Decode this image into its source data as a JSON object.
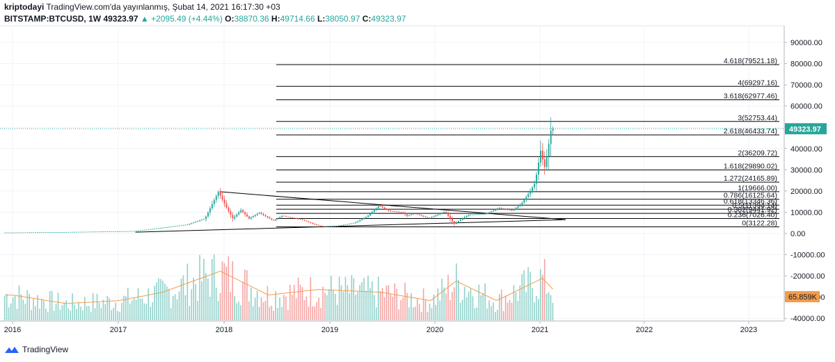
{
  "header": {
    "author": "kriptodayi",
    "published": "TradingView.com'da yayınlanmış, Şubat 14, 2021 16:17:30 +03",
    "symbol": "BITSTAMP:BTCUSD, 1W",
    "last": "49323.97",
    "change": "▲ +2095.49 (+4.44%)",
    "o_label": "O:",
    "o": "38870.36",
    "h_label": "H:",
    "h": "49714.66",
    "l_label": "L:",
    "l": "38050.97",
    "c_label": "C:",
    "c": "49323.97"
  },
  "footer": {
    "brand": "TradingView"
  },
  "colors": {
    "up": "#26a69a",
    "down": "#ef5350",
    "price_line": "#26a69a",
    "volume_up": "#8fd1c9",
    "volume_down": "#f5a3a1",
    "ma": "#f39c4b",
    "fib": "#000000"
  },
  "chart_data": {
    "type": "candlestick",
    "x_ticks": [
      "2016",
      "2017",
      "2018",
      "2019",
      "2020",
      "2021",
      "2022",
      "2023"
    ],
    "y_ticks": [
      "90000.00",
      "80000.00",
      "70000.00",
      "60000.00",
      "50000.00",
      "40000.00",
      "30000.00",
      "20000.00",
      "10000.00",
      "0.00",
      "-10000.00",
      "-20000.00",
      "-30000.00",
      "-40000.00"
    ],
    "ylim": [
      -40000,
      95000
    ],
    "last_price_label": "49323.97",
    "volume_label": "65.859K",
    "fib_levels": [
      {
        "ratio": 4.618,
        "value": 79521.18,
        "label": "4.618(79521.18)"
      },
      {
        "ratio": 4,
        "value": 69297.16,
        "label": "4(69297.16)"
      },
      {
        "ratio": 3.618,
        "value": 62977.46,
        "label": "3.618(62977.46)"
      },
      {
        "ratio": 3,
        "value": 52753.44,
        "label": "3(52753.44)"
      },
      {
        "ratio": 2.618,
        "value": 46433.74,
        "label": "2.618(46433.74)"
      },
      {
        "ratio": 2,
        "value": 36209.72,
        "label": "2(36209.72)"
      },
      {
        "ratio": 1.618,
        "value": 29890.02,
        "label": "1.618(29890.02)"
      },
      {
        "ratio": 1.272,
        "value": 24165.89,
        "label": "1.272(24165.89)"
      },
      {
        "ratio": 1,
        "value": 19666.0,
        "label": "1(19666.00)"
      },
      {
        "ratio": 0.786,
        "value": 16125.64,
        "label": "0.786(16125.64)"
      },
      {
        "ratio": 0.618,
        "value": 13346.36,
        "label": "0.618(13346.36)"
      },
      {
        "ratio": 0.5,
        "value": 11394.14,
        "label": "0.5(11394.14)"
      },
      {
        "ratio": 0.382,
        "value": 9441.92,
        "label": "0.382(9441.92)"
      },
      {
        "ratio": 0.236,
        "value": 7026.4,
        "label": "0.236(7026.40)"
      },
      {
        "ratio": 0,
        "value": 3122.28,
        "label": "0(3122.28)"
      }
    ],
    "series": [
      {
        "name": "price",
        "points": [
          [
            "2016-01-01",
            430
          ],
          [
            "2016-07-01",
            650
          ],
          [
            "2017-01-01",
            1000
          ],
          [
            "2017-03-01",
            1100
          ],
          [
            "2017-06-01",
            2600
          ],
          [
            "2017-09-01",
            4200
          ],
          [
            "2017-11-01",
            7000
          ],
          [
            "2017-12-17",
            19666
          ],
          [
            "2018-01-15",
            12000
          ],
          [
            "2018-02-05",
            7000
          ],
          [
            "2018-03-05",
            11000
          ],
          [
            "2018-04-02",
            7000
          ],
          [
            "2018-05-07",
            9800
          ],
          [
            "2018-06-25",
            6000
          ],
          [
            "2018-07-25",
            8300
          ],
          [
            "2018-10-01",
            6500
          ],
          [
            "2018-11-20",
            4000
          ],
          [
            "2018-12-15",
            3200
          ],
          [
            "2019-02-01",
            3500
          ],
          [
            "2019-04-01",
            5000
          ],
          [
            "2019-05-15",
            8000
          ],
          [
            "2019-06-26",
            13000
          ],
          [
            "2019-08-01",
            10500
          ],
          [
            "2019-09-15",
            10000
          ],
          [
            "2019-10-01",
            8300
          ],
          [
            "2019-10-26",
            9500
          ],
          [
            "2019-12-15",
            7100
          ],
          [
            "2020-02-10",
            10300
          ],
          [
            "2020-03-13",
            4500
          ],
          [
            "2020-05-01",
            8800
          ],
          [
            "2020-07-01",
            9200
          ],
          [
            "2020-08-15",
            12000
          ],
          [
            "2020-10-01",
            10800
          ],
          [
            "2020-11-01",
            13800
          ],
          [
            "2020-12-01",
            19500
          ],
          [
            "2020-12-20",
            24000
          ],
          [
            "2021-01-08",
            39000
          ],
          [
            "2021-01-22",
            31000
          ],
          [
            "2021-02-01",
            38000
          ],
          [
            "2021-02-14",
            49323.97
          ]
        ]
      },
      {
        "name": "volume",
        "points": [
          [
            "2016-01-01",
            18000
          ],
          [
            "2016-07-01",
            12000
          ],
          [
            "2017-01-01",
            14000
          ],
          [
            "2017-06-01",
            20000
          ],
          [
            "2017-12-17",
            35000
          ],
          [
            "2018-02-05",
            30000
          ],
          [
            "2018-06-01",
            18000
          ],
          [
            "2018-11-20",
            22000
          ],
          [
            "2019-06-26",
            20000
          ],
          [
            "2019-12-15",
            14000
          ],
          [
            "2020-03-13",
            28000
          ],
          [
            "2020-08-01",
            14000
          ],
          [
            "2021-01-08",
            30000
          ],
          [
            "2021-02-14",
            22000
          ]
        ]
      }
    ],
    "trendlines": [
      {
        "from": [
          "2017-12-17",
          19666
        ],
        "to": [
          "2021-04-01",
          6500
        ]
      },
      {
        "from": [
          "2017-03-01",
          600
        ],
        "to": [
          "2021-04-01",
          6500
        ]
      }
    ]
  }
}
